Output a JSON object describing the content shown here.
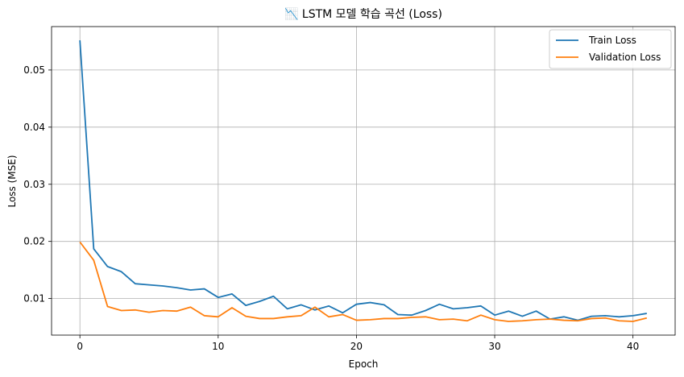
{
  "chart_data": {
    "type": "line",
    "title": "📉 LSTM 모델 학습 곡선 (Loss)",
    "xlabel": "Epoch",
    "ylabel": "Loss (MSE)",
    "xlim": [
      -2.05,
      43.05
    ],
    "ylim": [
      0.0036,
      0.0576
    ],
    "xticks": [
      0,
      10,
      20,
      30,
      40
    ],
    "yticks": [
      0.01,
      0.02,
      0.03,
      0.04,
      0.05
    ],
    "ytick_labels": [
      "0.01",
      "0.02",
      "0.03",
      "0.04",
      "0.05"
    ],
    "grid": true,
    "legend_position": "top-right",
    "x": [
      0,
      1,
      2,
      3,
      4,
      5,
      6,
      7,
      8,
      9,
      10,
      11,
      12,
      13,
      14,
      15,
      16,
      17,
      18,
      19,
      20,
      21,
      22,
      23,
      24,
      25,
      26,
      27,
      28,
      29,
      30,
      31,
      32,
      33,
      34,
      35,
      36,
      37,
      38,
      39,
      40,
      41
    ],
    "series": [
      {
        "name": "Train Loss",
        "color": "#1f77b4",
        "values": [
          0.0552,
          0.0187,
          0.0156,
          0.0147,
          0.0126,
          0.0124,
          0.0122,
          0.0119,
          0.0115,
          0.0117,
          0.0102,
          0.0108,
          0.0088,
          0.0095,
          0.0104,
          0.0082,
          0.0089,
          0.008,
          0.0087,
          0.0075,
          0.009,
          0.0093,
          0.0089,
          0.0072,
          0.0071,
          0.0079,
          0.009,
          0.0082,
          0.0084,
          0.0087,
          0.0071,
          0.0078,
          0.0069,
          0.0078,
          0.0064,
          0.0068,
          0.0062,
          0.0069,
          0.007,
          0.0068,
          0.007,
          0.0074
        ]
      },
      {
        "name": "Validation Loss",
        "color": "#ff7f0e",
        "values": [
          0.0199,
          0.0167,
          0.0086,
          0.0079,
          0.008,
          0.0076,
          0.0079,
          0.0078,
          0.0085,
          0.007,
          0.0068,
          0.0084,
          0.0069,
          0.0065,
          0.0065,
          0.0068,
          0.007,
          0.0085,
          0.0068,
          0.0072,
          0.0062,
          0.0063,
          0.0065,
          0.0065,
          0.0067,
          0.0068,
          0.0063,
          0.0064,
          0.0061,
          0.0071,
          0.0063,
          0.006,
          0.0061,
          0.0063,
          0.0064,
          0.0062,
          0.0061,
          0.0065,
          0.0066,
          0.0061,
          0.006,
          0.0066
        ]
      }
    ]
  }
}
